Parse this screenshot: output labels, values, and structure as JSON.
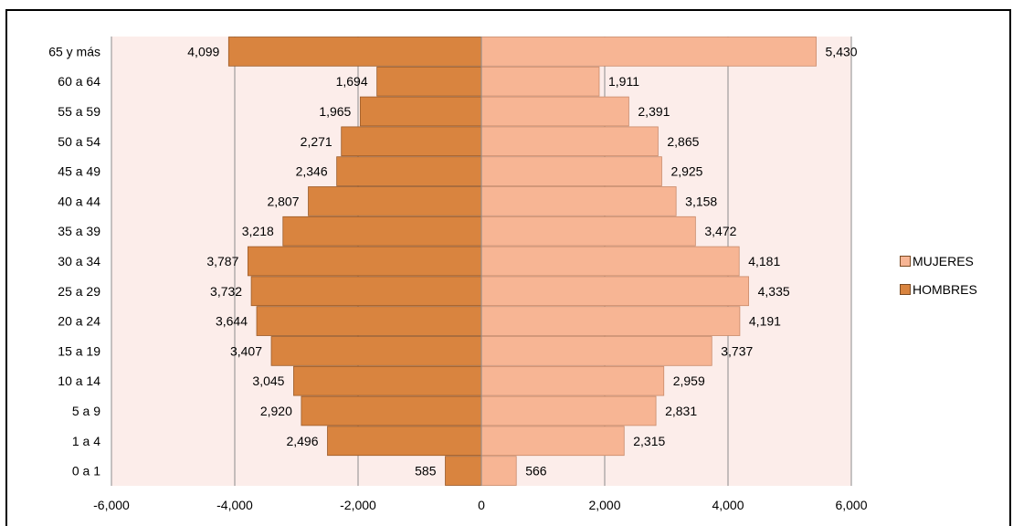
{
  "chart_data": {
    "type": "bar",
    "orientation": "horizontal",
    "categories": [
      "0 a 1",
      "1 a 4",
      "5 a 9",
      "10 a 14",
      "15 a 19",
      "20 a 24",
      "25 a 29",
      "30 a 34",
      "35 a 39",
      "40 a 44",
      "45 a 49",
      "50 a 54",
      "55 a 59",
      "60 a 64",
      "65 y más"
    ],
    "series": [
      {
        "name": "MUJERES",
        "color": "#F7B594",
        "values": [
          566,
          2315,
          2831,
          2959,
          3737,
          4191,
          4335,
          4181,
          3472,
          3158,
          2925,
          2865,
          2391,
          1911,
          5430
        ],
        "labels": [
          "566",
          "2,315",
          "2,831",
          "2,959",
          "3,737",
          "4,191",
          "4,335",
          "4,181",
          "3,472",
          "3,158",
          "2,925",
          "2,865",
          "2,391",
          "1,911",
          "5,430"
        ]
      },
      {
        "name": "HOMBRES",
        "color": "#D9843F",
        "values": [
          -585,
          -2496,
          -2920,
          -3045,
          -3407,
          -3644,
          -3732,
          -3787,
          -3218,
          -2807,
          -2346,
          -2271,
          -1965,
          -1694,
          -4099
        ],
        "labels": [
          "585",
          "2,496",
          "2,920",
          "3,045",
          "3,407",
          "3,644",
          "3,732",
          "3,787",
          "3,218",
          "2,807",
          "2,346",
          "2,271",
          "1,965",
          "1,694",
          "4,099"
        ]
      }
    ],
    "xlim": [
      -6000,
      6000
    ],
    "xticks": [
      -6000,
      -4000,
      -2000,
      0,
      2000,
      4000,
      6000
    ],
    "xtick_labels": [
      "-6,000",
      "-4,000",
      "-2,000",
      "0",
      "2,000",
      "4,000",
      "6,000"
    ],
    "plot_background": "#FCEDEA",
    "grid": true,
    "legend_position": "right"
  }
}
